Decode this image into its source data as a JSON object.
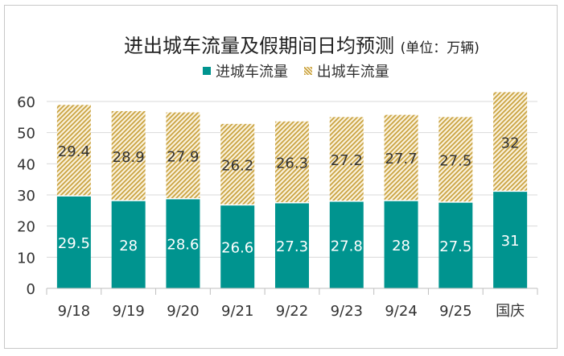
{
  "chart_data": {
    "type": "bar",
    "stacked": true,
    "title": "进出城车流量及假期间日均预测",
    "title_unit": "(单位：万辆)",
    "categories": [
      "9/18",
      "9/19",
      "9/20",
      "9/21",
      "9/22",
      "9/23",
      "9/24",
      "9/25",
      "国庆"
    ],
    "series": [
      {
        "name": "进城车流量",
        "values": [
          29.5,
          28,
          28.6,
          26.6,
          27.3,
          27.8,
          28,
          27.5,
          31
        ]
      },
      {
        "name": "出城车流量",
        "values": [
          29.4,
          28.9,
          27.9,
          26.2,
          26.3,
          27.2,
          27.7,
          27.5,
          32
        ]
      }
    ],
    "ylim": [
      0,
      60
    ],
    "yticks": [
      0,
      10,
      20,
      30,
      40,
      50,
      60
    ],
    "grid": true,
    "legend_position": "top",
    "colors": {
      "inbound": "#00948f",
      "outbound_stripe": "#c9a23f",
      "outbound_bg": "#fbf3df"
    }
  }
}
